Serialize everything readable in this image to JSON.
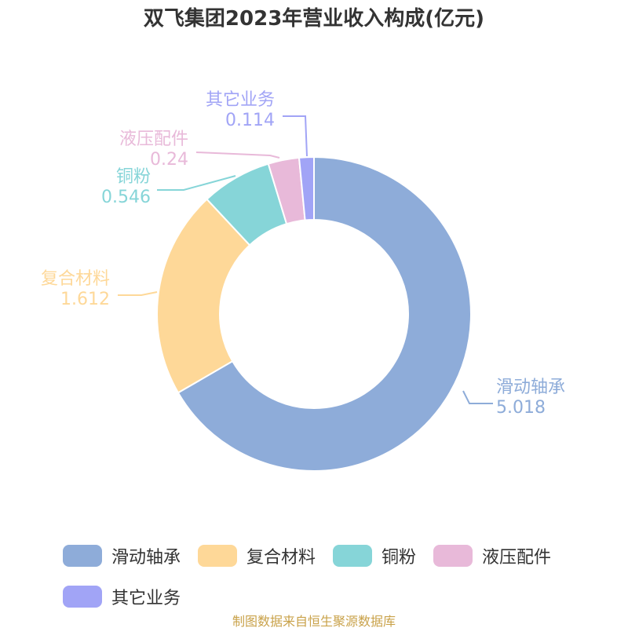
{
  "title": "双飞集团2023年营业收入构成(亿元)",
  "source": "制图数据来自恒生聚源数据库",
  "chart_data": {
    "type": "pie",
    "donut": true,
    "title": "双飞集团2023年营业收入构成(亿元)",
    "unit": "亿元",
    "categories": [
      "滑动轴承",
      "复合材料",
      "铜粉",
      "液压配件",
      "其它业务"
    ],
    "values": [
      5.018,
      1.612,
      0.546,
      0.24,
      0.114
    ],
    "value_labels": [
      "5.018",
      "1.612",
      "0.546",
      "0.24",
      "0.114"
    ],
    "colors": [
      "#8eacd9",
      "#fed898",
      "#86d5d8",
      "#e8b9d9",
      "#a1a4f6"
    ],
    "legend_position": "bottom"
  },
  "legend": [
    {
      "label": "滑动轴承",
      "color": "#8eacd9"
    },
    {
      "label": "复合材料",
      "color": "#fed898"
    },
    {
      "label": "铜粉",
      "color": "#86d5d8"
    },
    {
      "label": "液压配件",
      "color": "#e8b9d9"
    },
    {
      "label": "其它业务",
      "color": "#a1a4f6"
    }
  ]
}
